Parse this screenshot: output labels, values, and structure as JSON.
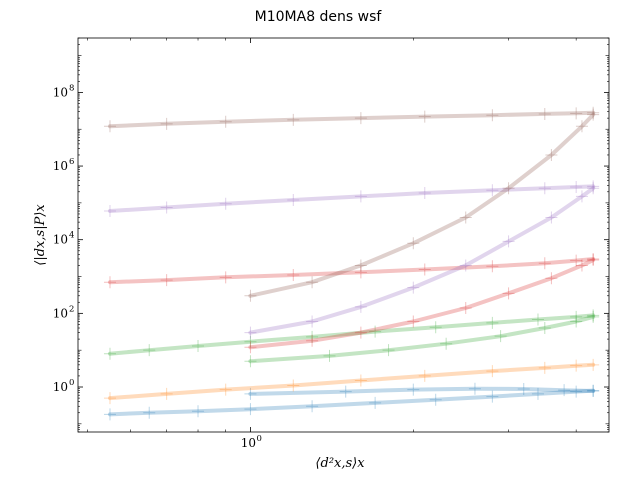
{
  "chart_data": {
    "type": "line",
    "title": "M10MA8 dens wsf",
    "xlabel": "⟨d²x,s⟩x",
    "ylabel": "⟨|dx,s|P⟩x",
    "xscale": "log",
    "yscale": "log",
    "xlim": [
      0.48,
      4.6
    ],
    "ylim": [
      0.06,
      3000000000.0
    ],
    "x_ticks": [
      {
        "value": 1,
        "label": "10",
        "exp": "0"
      }
    ],
    "y_ticks": [
      {
        "value": 1,
        "label": "10",
        "exp": "0"
      },
      {
        "value": 100,
        "label": "10",
        "exp": "2"
      },
      {
        "value": 10000,
        "label": "10",
        "exp": "4"
      },
      {
        "value": 1000000,
        "label": "10",
        "exp": "6"
      },
      {
        "value": 100000000,
        "label": "10",
        "exp": "8"
      }
    ],
    "grid": false,
    "legend": "none",
    "series": [
      {
        "color": "#1f77b4",
        "x": [
          0.55,
          0.65,
          0.8,
          1.0,
          1.3,
          1.7,
          2.2,
          2.8,
          3.4,
          4.0,
          4.3
        ],
        "y": [
          0.18,
          0.2,
          0.22,
          0.25,
          0.3,
          0.37,
          0.45,
          0.55,
          0.65,
          0.75,
          0.8
        ]
      },
      {
        "color": "#1f77b4",
        "x": [
          1.0,
          1.5,
          2.0,
          2.6,
          3.2,
          3.8,
          4.3
        ],
        "y": [
          0.65,
          0.75,
          0.85,
          0.9,
          0.88,
          0.82,
          0.78
        ]
      },
      {
        "color": "#ff7f0e",
        "x": [
          0.55,
          0.7,
          0.9,
          1.2,
          1.6,
          2.1,
          2.8,
          3.5,
          4.0,
          4.3
        ],
        "y": [
          0.5,
          0.65,
          0.85,
          1.1,
          1.5,
          2.0,
          2.7,
          3.3,
          3.8,
          4.0
        ]
      },
      {
        "color": "#2ca02c",
        "x": [
          0.55,
          0.65,
          0.8,
          1.0,
          1.3,
          1.7,
          2.2,
          2.8,
          3.4,
          4.0,
          4.3
        ],
        "y": [
          8,
          10,
          13,
          17,
          23,
          32,
          42,
          55,
          68,
          80,
          88
        ]
      },
      {
        "color": "#2ca02c",
        "x": [
          1.0,
          1.4,
          1.8,
          2.3,
          2.9,
          3.5,
          4.0,
          4.3
        ],
        "y": [
          5,
          7,
          10,
          15,
          24,
          40,
          60,
          80
        ]
      },
      {
        "color": "#d62728",
        "x": [
          0.55,
          0.7,
          0.9,
          1.2,
          1.6,
          2.1,
          2.8,
          3.5,
          4.0,
          4.3
        ],
        "y": [
          700,
          800,
          950,
          1100,
          1300,
          1550,
          1900,
          2300,
          2700,
          3000
        ]
      },
      {
        "color": "#d62728",
        "x": [
          1.0,
          1.3,
          1.6,
          2.0,
          2.5,
          3.0,
          3.6,
          4.1,
          4.3
        ],
        "y": [
          12,
          18,
          30,
          60,
          140,
          350,
          900,
          2000,
          2800
        ]
      },
      {
        "color": "#9467bd",
        "x": [
          0.55,
          0.7,
          0.9,
          1.2,
          1.6,
          2.1,
          2.8,
          3.5,
          4.0,
          4.3
        ],
        "y": [
          60000,
          75000,
          95000,
          120000,
          150000,
          185000,
          220000,
          250000,
          270000,
          280000
        ]
      },
      {
        "color": "#9467bd",
        "x": [
          1.0,
          1.3,
          1.6,
          2.0,
          2.5,
          3.0,
          3.6,
          4.1,
          4.3
        ],
        "y": [
          30,
          60,
          150,
          500,
          2000,
          9000,
          40000,
          150000,
          250000
        ]
      },
      {
        "color": "#8c564b",
        "x": [
          0.55,
          0.7,
          0.9,
          1.2,
          1.6,
          2.1,
          2.8,
          3.5,
          4.0,
          4.3
        ],
        "y": [
          12000000,
          14000000,
          16000000,
          18000000,
          20000000,
          22000000,
          24000000,
          26000000,
          27000000,
          28000000
        ]
      },
      {
        "color": "#8c564b",
        "x": [
          1.0,
          1.3,
          1.6,
          2.0,
          2.5,
          3.0,
          3.6,
          4.1,
          4.3
        ],
        "y": [
          300,
          700,
          2000,
          8000,
          40000,
          250000,
          2000000,
          12000000,
          25000000
        ]
      }
    ]
  }
}
